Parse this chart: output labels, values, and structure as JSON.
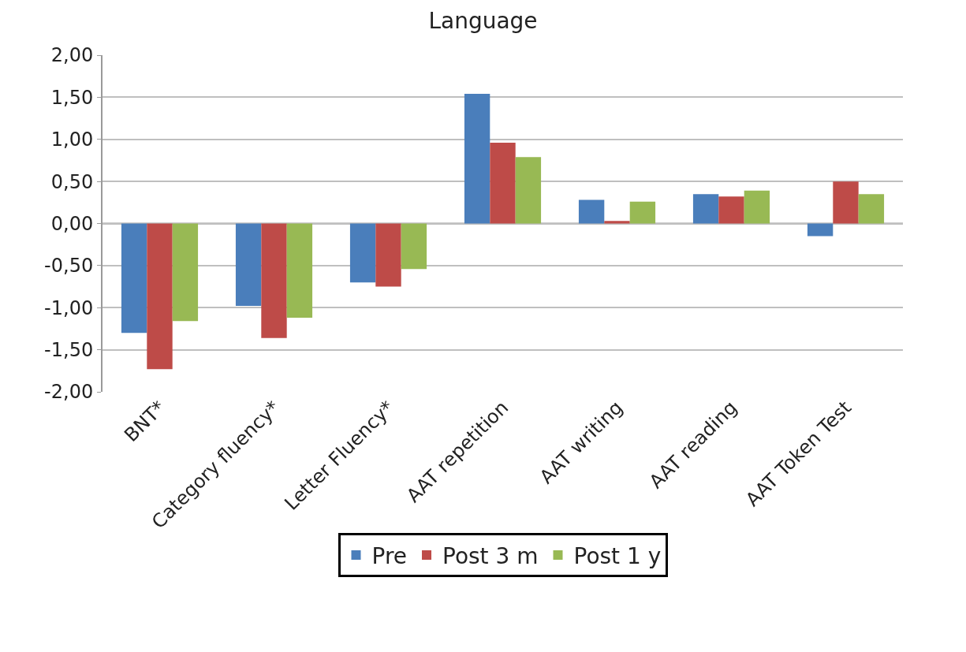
{
  "chart_data": {
    "type": "bar",
    "title": "Language",
    "categories": [
      "BNT*",
      "Category fluency*",
      "Letter Fluency*",
      "AAT repetition",
      "AAT writing",
      "AAT reading",
      "AAT Token Test"
    ],
    "series": [
      {
        "name": "Pre",
        "color": "#4a7ebb",
        "values": [
          -1.3,
          -0.98,
          -0.7,
          1.54,
          0.28,
          0.35,
          -0.15
        ]
      },
      {
        "name": "Post 3 m",
        "color": "#be4b48",
        "values": [
          -1.73,
          -1.36,
          -0.75,
          0.96,
          0.03,
          0.32,
          0.5
        ]
      },
      {
        "name": "Post 1 y",
        "color": "#98b954",
        "values": [
          -1.16,
          -1.12,
          -0.54,
          0.79,
          0.26,
          0.39,
          0.35
        ]
      }
    ],
    "ylim": [
      -2,
      2
    ],
    "yticks": [
      {
        "value": -2,
        "label": "-2,00"
      },
      {
        "value": -1.5,
        "label": "-1,50"
      },
      {
        "value": -1,
        "label": "-1,00"
      },
      {
        "value": -0.5,
        "label": "-0,50"
      },
      {
        "value": 0,
        "label": "0,00"
      },
      {
        "value": 0.5,
        "label": "0,50"
      },
      {
        "value": 1,
        "label": "1,00"
      },
      {
        "value": 1.5,
        "label": "1,50"
      },
      {
        "value": 2,
        "label": "2,00"
      }
    ],
    "grid": "y",
    "legend": "bottom"
  }
}
